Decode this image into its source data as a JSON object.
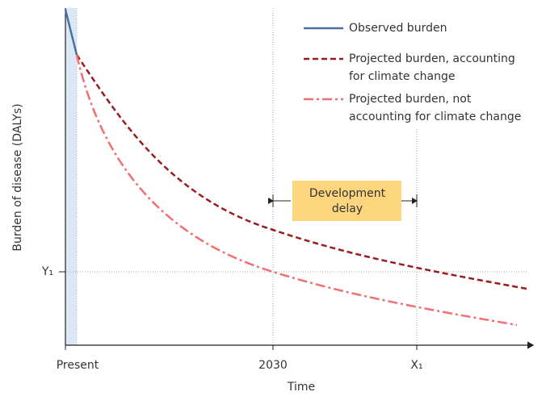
{
  "legend": [
    {
      "lines": [
        "Observed burden"
      ]
    },
    {
      "lines": [
        "Projected burden, accounting",
        "for climate change"
      ]
    },
    {
      "lines": [
        "Projected burden, not",
        "accounting for climate change"
      ]
    }
  ],
  "y_axis": {
    "title": "Burden of disease (DALYs)",
    "marker": "Y₁"
  },
  "x_axis": {
    "title": "Time",
    "labels": [
      "Present",
      "2030",
      "X₁"
    ]
  },
  "annotation": {
    "lines": [
      "Development",
      "delay"
    ]
  }
}
